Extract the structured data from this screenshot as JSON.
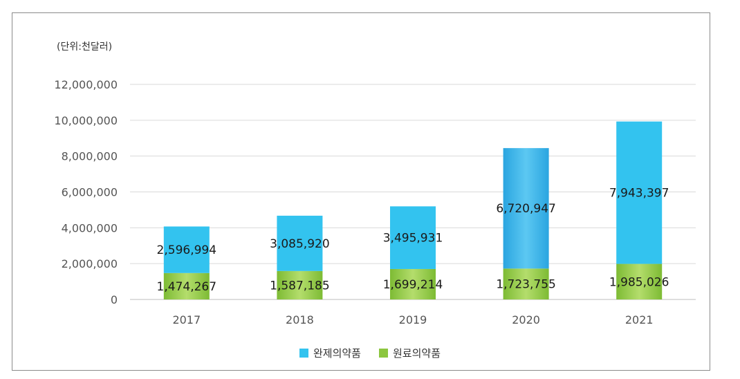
{
  "chart_data": {
    "type": "bar",
    "stacked": true,
    "unit_label": "(단위:천달러)",
    "categories": [
      "2017",
      "2018",
      "2019",
      "2020",
      "2021"
    ],
    "series": [
      {
        "name": "원료의약품",
        "color": "#8cc63f",
        "values": [
          1474267,
          1587185,
          1699214,
          1723755,
          1985026
        ],
        "value_labels": [
          "1,474,267",
          "1,587,185",
          "1,699,214",
          "1,723,755",
          "1,985,026"
        ]
      },
      {
        "name": "완제의약품",
        "color": "#33c3ef",
        "values": [
          2596994,
          3085920,
          3495931,
          6720947,
          7943397
        ],
        "value_labels": [
          "2,596,994",
          "3,085,920",
          "3,495,931",
          "6,720,947",
          "7,943,397"
        ]
      }
    ],
    "ylim": [
      0,
      12000000
    ],
    "yticks": [
      0,
      2000000,
      4000000,
      6000000,
      8000000,
      10000000,
      12000000
    ],
    "ytick_labels": [
      "0",
      "2,000,000",
      "4,000,000",
      "6,000,000",
      "8,000,000",
      "10,000,000",
      "12,000,000"
    ],
    "grid": true,
    "legend_position": "bottom",
    "legend": [
      "완제의약품",
      "원료의약품"
    ]
  }
}
